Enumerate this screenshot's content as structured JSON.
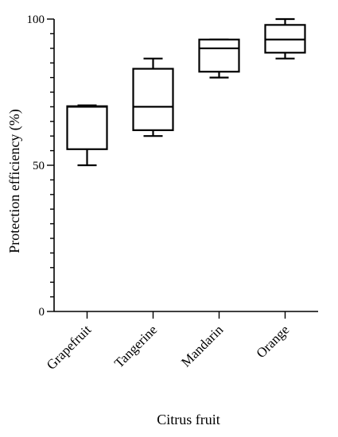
{
  "chart_data": {
    "type": "boxplot",
    "xlabel": "Citrus fruit",
    "ylabel": "Protection efficiency  (%)",
    "ylim": [
      0,
      100
    ],
    "yticks_major": [
      0,
      50,
      100
    ],
    "yticks_minor_step": 5,
    "categories": [
      "Grapefruit",
      "Tangerine",
      "Mandarin",
      "Orange"
    ],
    "boxes": [
      {
        "category": "Grapefruit",
        "min": 50,
        "q1": 55.5,
        "median": 70,
        "q3": 70.2,
        "max": 70.5
      },
      {
        "category": "Tangerine",
        "min": 60,
        "q1": 62,
        "median": 70,
        "q3": 83,
        "max": 86.5
      },
      {
        "category": "Mandarin",
        "min": 80,
        "q1": 82,
        "median": 90,
        "q3": 93,
        "max": 93
      },
      {
        "category": "Orange",
        "min": 86.5,
        "q1": 88.5,
        "median": 93,
        "q3": 98,
        "max": 100
      }
    ]
  }
}
